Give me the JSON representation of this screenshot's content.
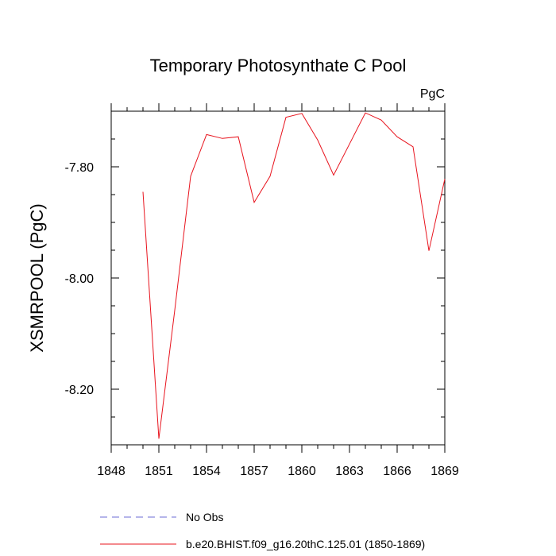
{
  "chart_data": {
    "type": "line",
    "title": "Temporary Photosynthate C Pool",
    "units_label": "PgC",
    "ylabel": "XSMRPOOL  (PgC)",
    "xlabel": "",
    "xlim": [
      1848,
      1869
    ],
    "ylim": [
      -8.3,
      -7.7
    ],
    "x_ticks": [
      1848,
      1851,
      1854,
      1857,
      1860,
      1863,
      1866,
      1869
    ],
    "x_tick_labels": [
      "1848",
      "1851",
      "1854",
      "1857",
      "1860",
      "1863",
      "1866",
      "1869"
    ],
    "y_ticks": [
      -7.8,
      -8.0,
      -8.2
    ],
    "y_tick_labels": [
      "-7.80",
      "-8.00",
      "-8.20"
    ],
    "x": [
      1850,
      1851,
      1852,
      1853,
      1854,
      1855,
      1856,
      1857,
      1858,
      1859,
      1860,
      1861,
      1862,
      1863,
      1864,
      1865,
      1866,
      1867,
      1868,
      1869
    ],
    "series": [
      {
        "name": "b.e20.BHIST.f09_g16.20thC.125.01 (1850-1869)",
        "color": "#e8141e",
        "style": "solid",
        "values": [
          -7.845,
          -8.289,
          -8.058,
          -7.817,
          -7.742,
          -7.749,
          -7.746,
          -7.864,
          -7.817,
          -7.711,
          -7.704,
          -7.752,
          -7.815,
          -7.759,
          -7.703,
          -7.716,
          -7.746,
          -7.764,
          -7.951,
          -7.822
        ]
      }
    ],
    "legend": {
      "placement": "bottom-left",
      "entries": [
        {
          "label": "No Obs",
          "color": "#6b6bd6",
          "style": "dashed"
        },
        {
          "label": "b.e20.BHIST.f09_g16.20thC.125.01 (1850-1869)",
          "color": "#e8141e",
          "style": "solid"
        }
      ]
    },
    "grid": false
  }
}
